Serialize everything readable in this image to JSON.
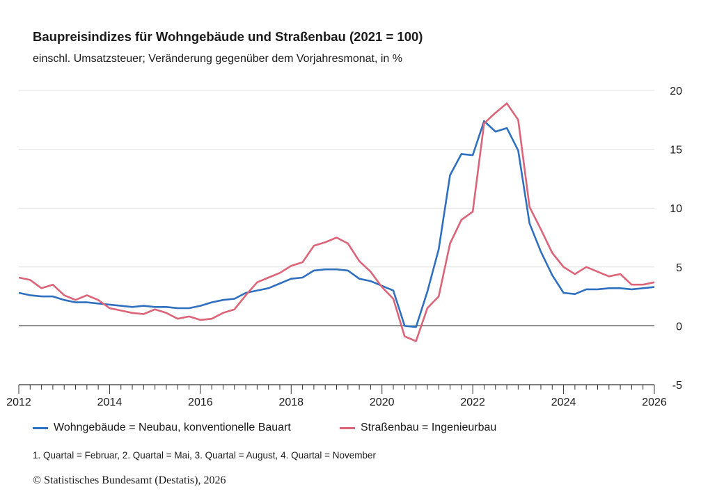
{
  "chart_data": {
    "type": "line",
    "title": "Baupreisindizes für Wohngebäude und Straßenbau (2021 = 100)",
    "subtitle": "einschl. Umsatzsteuer; Veränderung gegenüber dem Vorjahresmonat, in %",
    "xlabel": "",
    "ylabel": "",
    "xlim": [
      2012,
      2026
    ],
    "ylim": [
      -5,
      20
    ],
    "x_ticks": [
      "2012",
      "2014",
      "2016",
      "2018",
      "2020",
      "2022",
      "2024",
      "2026"
    ],
    "y_ticks": [
      "20",
      "15",
      "10",
      "5",
      "0",
      "-5"
    ],
    "grid": true,
    "legend_position": "bottom",
    "x_start": 2012,
    "x_step": 0.25,
    "series": [
      {
        "name": "Wohngebäude = Neubau, konventionelle Bauart",
        "color": "#2f6fbf",
        "values": [
          2.8,
          2.6,
          2.5,
          2.5,
          2.2,
          2.0,
          2.0,
          1.9,
          1.8,
          1.7,
          1.6,
          1.7,
          1.6,
          1.6,
          1.5,
          1.5,
          1.7,
          2.0,
          2.2,
          2.3,
          2.8,
          3.0,
          3.2,
          3.6,
          4.0,
          4.1,
          4.7,
          4.8,
          4.8,
          4.7,
          4.0,
          3.8,
          3.4,
          3.0,
          0.0,
          -0.1,
          2.9,
          6.5,
          12.8,
          14.6,
          14.5,
          17.4,
          16.5,
          16.8,
          14.9,
          8.7,
          6.3,
          4.3,
          2.8,
          2.7,
          3.1,
          3.1,
          3.2,
          3.2,
          3.1,
          3.2,
          3.3
        ]
      },
      {
        "name": "Straßenbau = Ingenieurbau",
        "color": "#dc6478",
        "values": [
          4.1,
          3.9,
          3.2,
          3.5,
          2.6,
          2.2,
          2.6,
          2.2,
          1.5,
          1.3,
          1.1,
          1.0,
          1.4,
          1.1,
          0.6,
          0.8,
          0.5,
          0.6,
          1.1,
          1.4,
          2.6,
          3.7,
          4.1,
          4.5,
          5.1,
          5.4,
          6.8,
          7.1,
          7.5,
          7.0,
          5.5,
          4.6,
          3.3,
          2.3,
          -0.9,
          -1.3,
          1.5,
          2.5,
          7.0,
          9.0,
          9.7,
          17.2,
          18.1,
          18.9,
          17.5,
          10.1,
          8.2,
          6.2,
          5.0,
          4.4,
          5.0,
          4.6,
          4.2,
          4.4,
          3.5,
          3.5,
          3.7
        ]
      }
    ]
  },
  "footnote": "1. Quartal = Februar, 2. Quartal = Mai, 3. Quartal = August, 4. Quartal = November",
  "copyright": "© Statistisches Bundesamt (Destatis), 2026"
}
